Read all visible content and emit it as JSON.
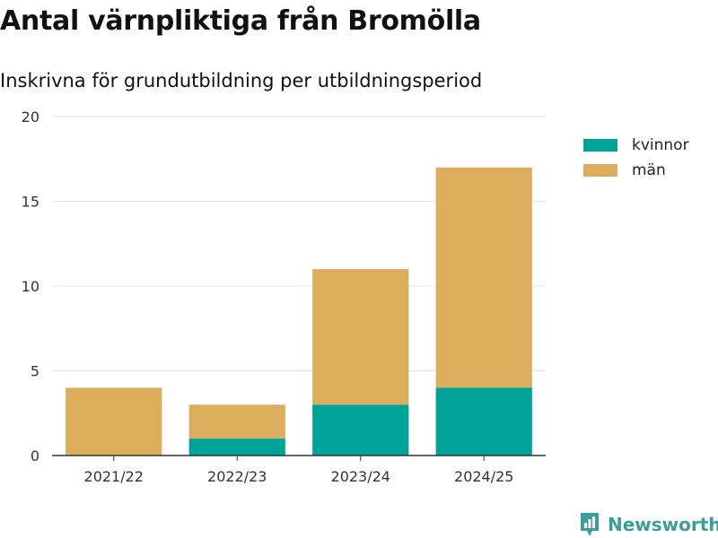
{
  "header": {
    "title": "Antal värnpliktiga från Bromölla",
    "subtitle": "Inskrivna för grundutbildning per utbildningsperiod"
  },
  "chart_data": {
    "type": "bar",
    "stacked": true,
    "categories": [
      "2021/22",
      "2022/23",
      "2023/24",
      "2024/25"
    ],
    "series": [
      {
        "name": "kvinnor",
        "values": [
          0,
          1,
          3,
          4
        ],
        "color": "#00a398"
      },
      {
        "name": "män",
        "values": [
          4,
          2,
          8,
          13
        ],
        "color": "#dbad5c"
      }
    ],
    "title": "Antal värnpliktiga från Bromölla",
    "subtitle": "Inskrivna för grundutbildning per utbildningsperiod",
    "xlabel": "",
    "ylabel": "",
    "ylim": [
      0,
      20
    ],
    "yticks": [
      0,
      5,
      10,
      15,
      20
    ],
    "grid": true,
    "legend": "top-right"
  },
  "brand": {
    "name": "Newsworthy",
    "icon": "newsworthy-logo-icon",
    "color": "#3a9e9a"
  }
}
